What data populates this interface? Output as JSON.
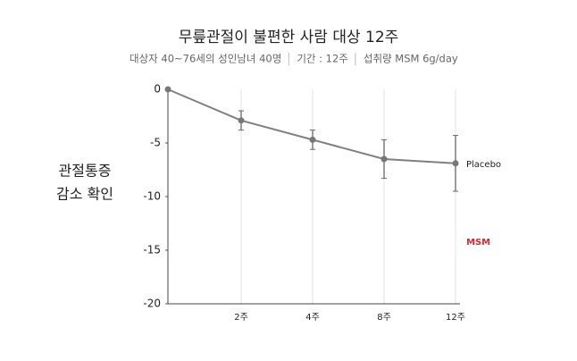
{
  "chart_data": {
    "type": "line",
    "title": "무릎관절이 불편한 사람 대상 12주",
    "subtitle": [
      "대상자 40~76세의 성인남녀 40명",
      "기간 : 12주",
      "섭취량 MSM 6g/day"
    ],
    "ylabel": [
      "관절통증",
      "감소 확인"
    ],
    "categories": [
      null,
      "2주",
      "4주",
      "8주",
      "12주"
    ],
    "series": [
      {
        "name": "Placebo",
        "color": "#808080",
        "values": [
          0,
          -2.9,
          -4.7,
          -6.5,
          -6.9
        ],
        "errors": [
          null,
          0.9,
          0.9,
          1.8,
          2.6
        ]
      },
      {
        "name": "MSM",
        "color": "#e0262b",
        "values": [
          null,
          null,
          null,
          null,
          null
        ]
      }
    ],
    "ylim": [
      -20,
      0
    ],
    "yticks": [
      0,
      -5,
      -10,
      -15,
      -20
    ],
    "grid": true
  }
}
